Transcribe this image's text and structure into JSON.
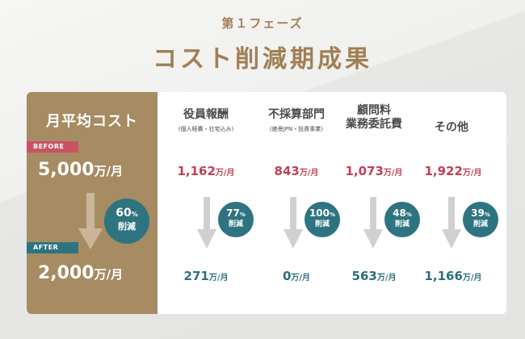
{
  "header": {
    "phase": "第１フェーズ",
    "title": "コスト削減期成果"
  },
  "summary": {
    "heading": "月平均コスト",
    "before_tag": "BEFORE",
    "after_tag": "AFTER",
    "before_amount": "5,000",
    "after_amount": "2,000",
    "unit": "万/月",
    "reduction_pct": "60",
    "pct_sign": "%",
    "reduction_label": "削減"
  },
  "items": [
    {
      "title_line1": "役員報酬",
      "title_line2": "",
      "subtitle": "(個人経費・社宅込み)",
      "before": "1,162",
      "after": "271",
      "pct": "77",
      "pct_sign": "%",
      "label": "削減",
      "unit": "万/月"
    },
    {
      "title_line1": "不採算部門",
      "title_line2": "",
      "subtitle": "(絶景JPN・投資事業)",
      "before": "843",
      "after": "0",
      "pct": "100",
      "pct_sign": "%",
      "label": "削減",
      "unit": "万/月"
    },
    {
      "title_line1": "顧問料",
      "title_line2": "業務委託費",
      "subtitle": "",
      "before": "1,073",
      "after": "563",
      "pct": "48",
      "pct_sign": "%",
      "label": "削減",
      "unit": "万/月"
    },
    {
      "title_line1": "その他",
      "title_line2": "",
      "subtitle": "",
      "before": "1,922",
      "after": "1,166",
      "pct": "39",
      "pct_sign": "%",
      "label": "削減",
      "unit": "万/月"
    }
  ],
  "colors": {
    "gold": "#a17f54",
    "panel": "#a78b62",
    "red": "#c23f55",
    "teal": "#2e7480",
    "arrow": "#d0d0d0"
  }
}
